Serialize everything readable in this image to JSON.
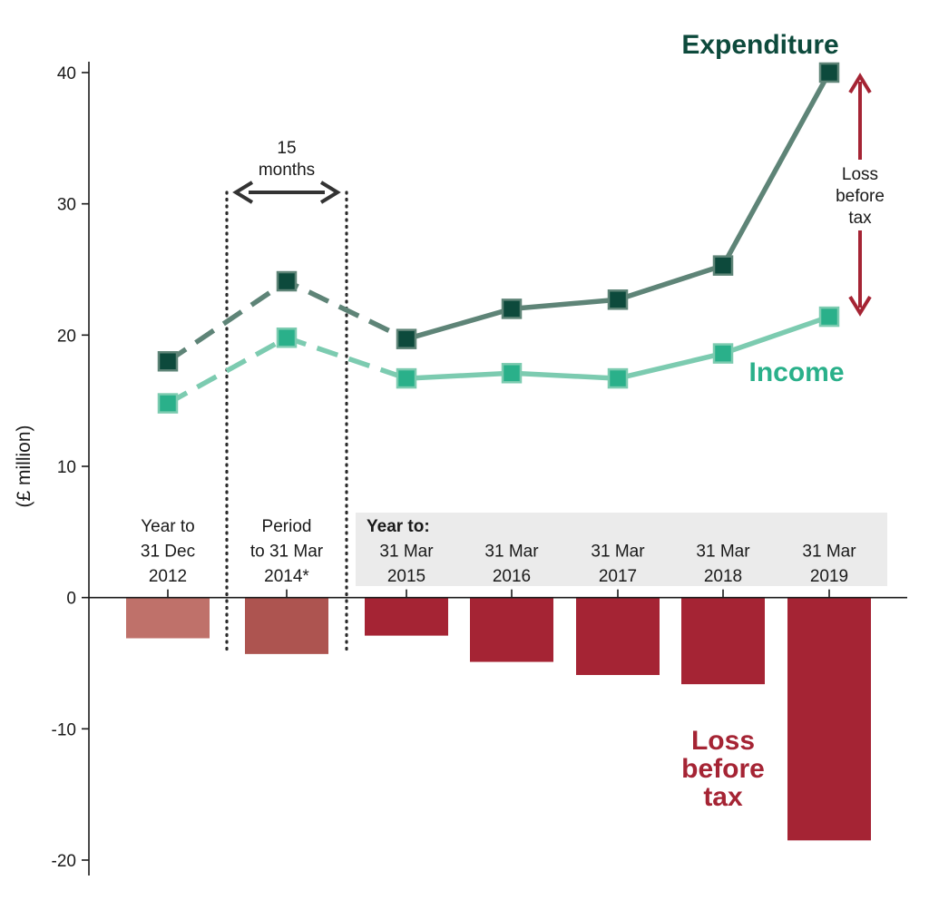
{
  "chart_data": {
    "type": "line",
    "ylabel": "(£ million)",
    "ylim": [
      -20,
      40
    ],
    "yticks": [
      40,
      30,
      20,
      10,
      0,
      -10,
      -20
    ],
    "grid": false,
    "categories": [
      [
        "Year to",
        "31 Dec",
        "2012"
      ],
      [
        "Period",
        "to 31 Mar",
        "2014*"
      ],
      [
        "31 Mar",
        "2015"
      ],
      [
        "31 Mar",
        "2016"
      ],
      [
        "31 Mar",
        "2017"
      ],
      [
        "31 Mar",
        "2018"
      ],
      [
        "31 Mar",
        "2019"
      ]
    ],
    "group_header": "Year to:",
    "series": [
      {
        "name": "Expenditure",
        "type": "line",
        "values": [
          18.0,
          24.1,
          19.7,
          22.0,
          22.7,
          25.3,
          40.0
        ],
        "dashed_through_index": 2,
        "color": "#5e8477",
        "marker_color": "#0d4a3c"
      },
      {
        "name": "Income",
        "type": "line",
        "values": [
          14.8,
          19.8,
          16.7,
          17.1,
          16.7,
          18.6,
          21.4
        ],
        "dashed_through_index": 2,
        "color": "#7ccbb0",
        "marker_color": "#2ab08a"
      },
      {
        "name": "Loss before tax",
        "type": "bar",
        "values": [
          -3.1,
          -4.3,
          -2.9,
          -4.9,
          -5.9,
          -6.6,
          -18.5
        ],
        "colors": [
          "#bf716a",
          "#ad5450",
          "#a52434",
          "#a52434",
          "#a52434",
          "#a52434",
          "#a52434"
        ]
      }
    ],
    "period_bracket": {
      "label": [
        "15",
        "months"
      ]
    },
    "loss_arrow": {
      "label": [
        "Loss",
        "before",
        "tax"
      ]
    },
    "series_labels": {
      "expenditure": "Expenditure",
      "income": "Income",
      "loss": [
        "Loss",
        "before",
        "tax"
      ]
    },
    "colors": {
      "expenditure_label": "#0d4a3c",
      "income_label": "#2ab08a",
      "loss": "#a52434",
      "header_band": "#ebebeb",
      "axis": "#1a1a1a"
    }
  }
}
